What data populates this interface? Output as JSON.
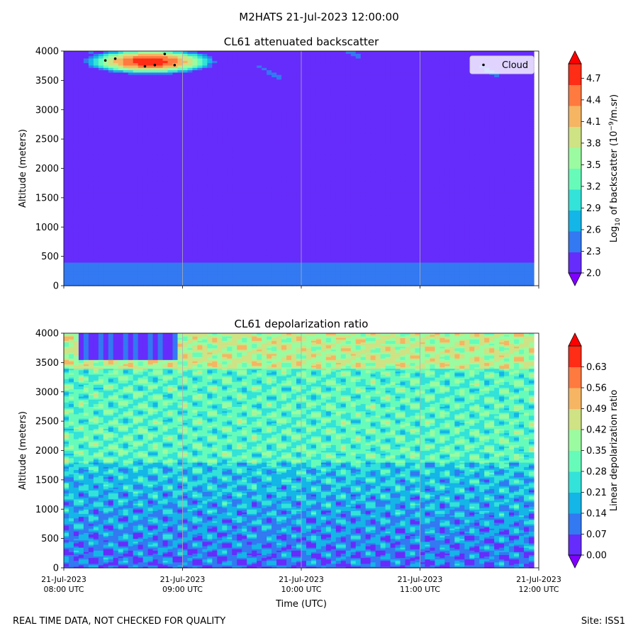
{
  "figure": {
    "suptitle": "M2HATS 21-Jul-2023 12:00:00",
    "footer_left": "REAL TIME DATA, NOT CHECKED FOR QUALITY",
    "footer_right": "Site: ISS1",
    "xlabel": "Time (UTC)"
  },
  "colormap": [
    "#8000ff",
    "#4661f7",
    "#0ca7ea",
    "#2adddd",
    "#64fbbb",
    "#9efb9f",
    "#d8dd7f",
    "#ffa75a",
    "#ff6130",
    "#ff0000"
  ],
  "chart_data": [
    {
      "type": "heatmap",
      "title": "CL61 attenuated backscatter",
      "ylabel": "Altitude (meters)",
      "ylim": [
        0,
        4000
      ],
      "yticks": [
        0,
        500,
        1000,
        1500,
        2000,
        2500,
        3000,
        3500,
        4000
      ],
      "xticks": [
        "21-Jul-2023\n08:00 UTC",
        "21-Jul-2023\n09:00 UTC",
        "21-Jul-2023\n10:00 UTC",
        "21-Jul-2023\n11:00 UTC",
        "21-Jul-2023\n12:00 UTC"
      ],
      "xtick_labels_visible": false,
      "xlim": [
        "2023-07-21 08:00",
        "2023-07-21 12:00"
      ],
      "grid": "x",
      "colorbar": {
        "label": "Log10 of backscatter (10^-9/m.sr)",
        "ticks": [
          "2.0",
          "2.3",
          "2.6",
          "2.9",
          "3.2",
          "3.5",
          "3.8",
          "4.1",
          "4.4",
          "4.7"
        ],
        "range": [
          2.0,
          4.9
        ],
        "extend": "both"
      },
      "legend": {
        "placement": "top-right",
        "entries": [
          "Cloud"
        ]
      },
      "cloud_points": [
        {
          "time": "08:21",
          "altitude": 3840
        },
        {
          "time": "08:26",
          "altitude": 3870
        },
        {
          "time": "08:41",
          "altitude": 3740
        },
        {
          "time": "08:46",
          "altitude": 3760
        },
        {
          "time": "08:51",
          "altitude": 3950
        },
        {
          "time": "08:56",
          "altitude": 3760
        }
      ],
      "features": {
        "background_level": 2.2,
        "near_surface_level": 2.35,
        "cloud_layer": {
          "time_range": [
            "08:17",
            "09:10"
          ],
          "altitude_range": [
            3650,
            4000
          ],
          "peak_level": 4.8
        }
      }
    },
    {
      "type": "heatmap",
      "title": "CL61 depolarization ratio",
      "ylabel": "Altitude (meters)",
      "ylim": [
        0,
        4000
      ],
      "yticks": [
        0,
        500,
        1000,
        1500,
        2000,
        2500,
        3000,
        3500,
        4000
      ],
      "xticks": [
        "21-Jul-2023\n08:00 UTC",
        "21-Jul-2023\n09:00 UTC",
        "21-Jul-2023\n10:00 UTC",
        "21-Jul-2023\n11:00 UTC",
        "21-Jul-2023\n12:00 UTC"
      ],
      "xlim": [
        "2023-07-21 08:00",
        "2023-07-21 12:00"
      ],
      "grid": "x",
      "colorbar": {
        "label": "Linear depolarization ratio",
        "ticks": [
          "0.00",
          "0.07",
          "0.14",
          "0.21",
          "0.28",
          "0.35",
          "0.42",
          "0.49",
          "0.56",
          "0.63"
        ],
        "range": [
          0.0,
          0.7
        ],
        "extend": "both"
      },
      "features": {
        "low_level_ratio": 0.09,
        "mid_level_ratio": 0.3,
        "upper_level_ratio": 0.42,
        "cloud_layer_ratio": 0.06
      }
    }
  ]
}
